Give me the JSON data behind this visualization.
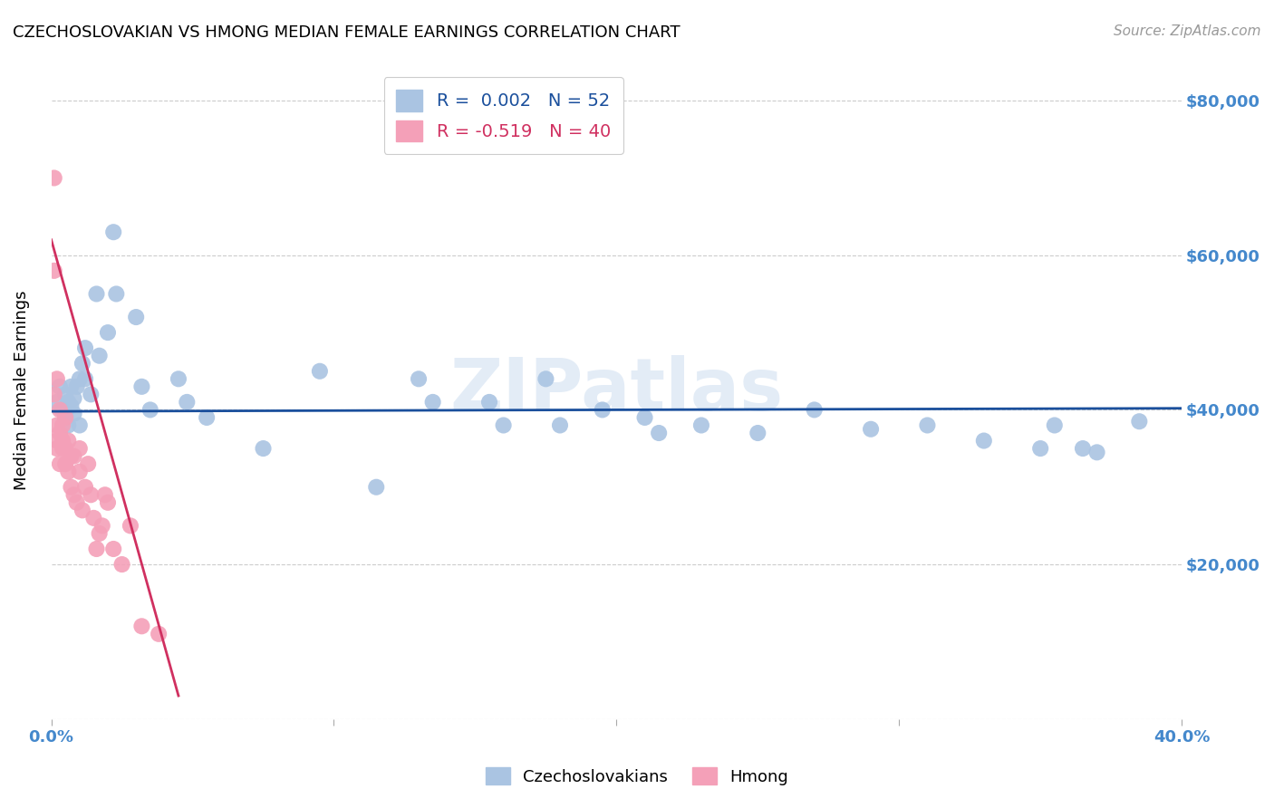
{
  "title": "CZECHOSLOVAKIAN VS HMONG MEDIAN FEMALE EARNINGS CORRELATION CHART",
  "source": "Source: ZipAtlas.com",
  "ylabel": "Median Female Earnings",
  "xlim": [
    0.0,
    0.4
  ],
  "ylim": [
    0,
    85000
  ],
  "yticks": [
    0,
    20000,
    40000,
    60000,
    80000
  ],
  "ytick_labels": [
    "",
    "$20,000",
    "$40,000",
    "$60,000",
    "$80,000"
  ],
  "color_czech": "#aac4e2",
  "color_hmong": "#f4a0b8",
  "color_trend_czech": "#1a4f9c",
  "color_trend_hmong": "#d03060",
  "color_ytick_labels": "#4488cc",
  "color_xtick_labels": "#4488cc",
  "watermark": "ZIPatlas",
  "czech_x": [
    0.002,
    0.003,
    0.004,
    0.005,
    0.005,
    0.006,
    0.006,
    0.007,
    0.007,
    0.008,
    0.008,
    0.009,
    0.01,
    0.01,
    0.011,
    0.012,
    0.012,
    0.014,
    0.016,
    0.017,
    0.02,
    0.022,
    0.023,
    0.03,
    0.032,
    0.035,
    0.045,
    0.048,
    0.055,
    0.075,
    0.095,
    0.115,
    0.13,
    0.135,
    0.155,
    0.16,
    0.175,
    0.18,
    0.195,
    0.21,
    0.215,
    0.23,
    0.25,
    0.27,
    0.29,
    0.31,
    0.33,
    0.35,
    0.355,
    0.365,
    0.37,
    0.385
  ],
  "czech_y": [
    41000,
    43000,
    40000,
    42000,
    39000,
    41000,
    38000,
    40500,
    43000,
    41500,
    39500,
    43000,
    44000,
    38000,
    46000,
    48000,
    44000,
    42000,
    55000,
    47000,
    50000,
    63000,
    55000,
    52000,
    43000,
    40000,
    44000,
    41000,
    39000,
    35000,
    45000,
    30000,
    44000,
    41000,
    41000,
    38000,
    44000,
    38000,
    40000,
    39000,
    37000,
    38000,
    37000,
    40000,
    37500,
    38000,
    36000,
    35000,
    38000,
    35000,
    34500,
    38500
  ],
  "hmong_x": [
    0.001,
    0.001,
    0.001,
    0.002,
    0.002,
    0.002,
    0.002,
    0.003,
    0.003,
    0.003,
    0.004,
    0.004,
    0.004,
    0.005,
    0.005,
    0.005,
    0.006,
    0.006,
    0.007,
    0.007,
    0.008,
    0.008,
    0.009,
    0.01,
    0.01,
    0.011,
    0.012,
    0.013,
    0.014,
    0.015,
    0.016,
    0.017,
    0.018,
    0.019,
    0.02,
    0.022,
    0.025,
    0.028,
    0.032,
    0.038
  ],
  "hmong_y": [
    70000,
    58000,
    42000,
    44000,
    38000,
    36000,
    35000,
    40000,
    37000,
    33000,
    36000,
    38000,
    35000,
    39000,
    35000,
    33000,
    32000,
    36000,
    34000,
    30000,
    34000,
    29000,
    28000,
    32000,
    35000,
    27000,
    30000,
    33000,
    29000,
    26000,
    22000,
    24000,
    25000,
    29000,
    28000,
    22000,
    20000,
    25000,
    12000,
    11000
  ],
  "czech_trend_x": [
    0.0,
    0.4
  ],
  "czech_trend_y": [
    39800,
    40200
  ],
  "hmong_trend_x": [
    0.0,
    0.045
  ],
  "hmong_trend_y": [
    62000,
    3000
  ]
}
